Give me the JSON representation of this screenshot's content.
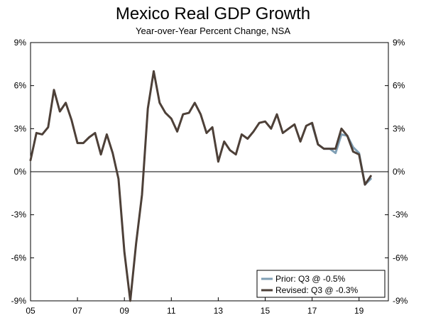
{
  "chart_data": {
    "type": "line",
    "title": "Mexico Real GDP Growth",
    "subtitle": "Year-over-Year Percent Change, NSA",
    "xlabel": "",
    "ylabel": "",
    "xlim": [
      2005.0,
      2020.25
    ],
    "ylim": [
      -9,
      9
    ],
    "y_ticks": [
      {
        "value": 9,
        "label": "9%"
      },
      {
        "value": 6,
        "label": "6%"
      },
      {
        "value": 3,
        "label": "3%"
      },
      {
        "value": 0,
        "label": "0%"
      },
      {
        "value": -3,
        "label": "-3%"
      },
      {
        "value": -6,
        "label": "-6%"
      },
      {
        "value": -9,
        "label": "-9%"
      }
    ],
    "x_ticks": [
      {
        "value": 2005,
        "label": "05"
      },
      {
        "value": 2007,
        "label": "07"
      },
      {
        "value": 2009,
        "label": "09"
      },
      {
        "value": 2011,
        "label": "11"
      },
      {
        "value": 2013,
        "label": "13"
      },
      {
        "value": 2015,
        "label": "15"
      },
      {
        "value": 2017,
        "label": "17"
      },
      {
        "value": 2019,
        "label": "19"
      }
    ],
    "grid": false,
    "legend_position": "bottom-right",
    "series": [
      {
        "name": "Prior: Q3 @ -0.5%",
        "color": "#7f9fb5",
        "x": [
          2017.0,
          2017.25,
          2017.5,
          2017.75,
          2018.0,
          2018.25,
          2018.5,
          2018.75,
          2019.0,
          2019.25,
          2019.5
        ],
        "values": [
          3.3,
          1.9,
          1.6,
          1.6,
          1.3,
          2.6,
          2.5,
          1.7,
          1.3,
          -0.9,
          -0.5
        ]
      },
      {
        "name": "Revised: Q3 @ -0.3%",
        "color": "#4d4038",
        "x": [
          2005.0,
          2005.25,
          2005.5,
          2005.75,
          2006.0,
          2006.25,
          2006.5,
          2006.75,
          2007.0,
          2007.25,
          2007.5,
          2007.75,
          2008.0,
          2008.25,
          2008.5,
          2008.75,
          2009.0,
          2009.25,
          2009.5,
          2009.75,
          2010.0,
          2010.25,
          2010.5,
          2010.75,
          2011.0,
          2011.25,
          2011.5,
          2011.75,
          2012.0,
          2012.25,
          2012.5,
          2012.75,
          2013.0,
          2013.25,
          2013.5,
          2013.75,
          2014.0,
          2014.25,
          2014.5,
          2014.75,
          2015.0,
          2015.25,
          2015.5,
          2015.75,
          2016.0,
          2016.25,
          2016.5,
          2016.75,
          2017.0,
          2017.25,
          2017.5,
          2017.75,
          2018.0,
          2018.25,
          2018.5,
          2018.75,
          2019.0,
          2019.25,
          2019.5
        ],
        "values": [
          0.8,
          2.7,
          2.6,
          3.1,
          5.7,
          4.2,
          4.8,
          3.6,
          2.0,
          2.0,
          2.4,
          2.7,
          1.2,
          2.6,
          1.3,
          -0.5,
          -5.6,
          -9.0,
          -5.0,
          -1.6,
          4.4,
          7.0,
          4.8,
          4.1,
          3.7,
          2.8,
          4.0,
          4.1,
          4.8,
          4.0,
          2.7,
          3.1,
          0.7,
          2.1,
          1.5,
          1.2,
          2.6,
          2.3,
          2.8,
          3.4,
          3.5,
          3.0,
          4.0,
          2.7,
          3.0,
          3.3,
          2.1,
          3.2,
          3.4,
          1.9,
          1.6,
          1.6,
          1.6,
          3.0,
          2.5,
          1.4,
          1.2,
          -0.9,
          -0.3
        ]
      }
    ]
  }
}
